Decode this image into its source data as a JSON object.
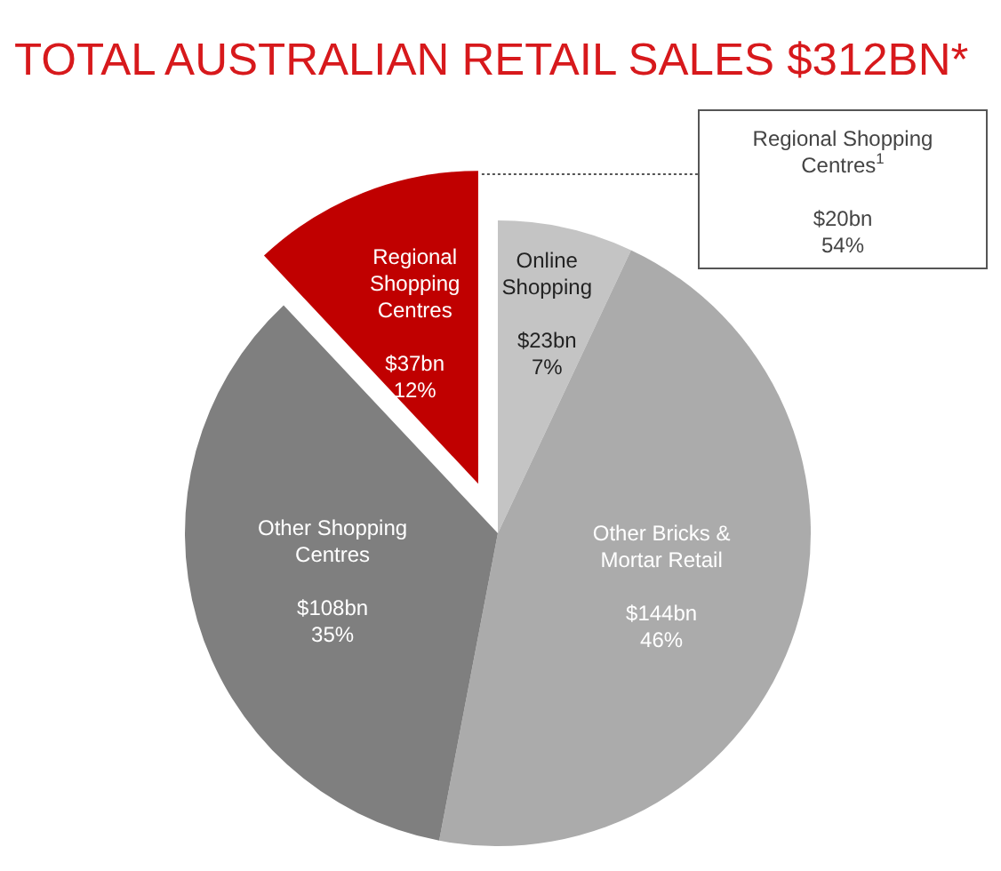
{
  "chart_data": {
    "type": "pie",
    "title": "TOTAL AUSTRALIAN RETAIL SALES $312BN*",
    "categories": [
      "Online Shopping",
      "Other Bricks & Mortar Retail",
      "Other Shopping Centres",
      "Regional Shopping Centres"
    ],
    "values": [
      7,
      46,
      35,
      12
    ],
    "colors": [
      "#c4c4c4",
      "#ababab",
      "#7f7f7f",
      "#c00000"
    ],
    "value_labels": [
      "$23bn\n7%",
      "$144bn\n46%",
      "$108bn\n35%",
      "$37bn\n12%"
    ],
    "annotations": [
      "Regional Shopping\nCentres$^{1}$\n\n$20bn\n54%"
    ]
  }
}
